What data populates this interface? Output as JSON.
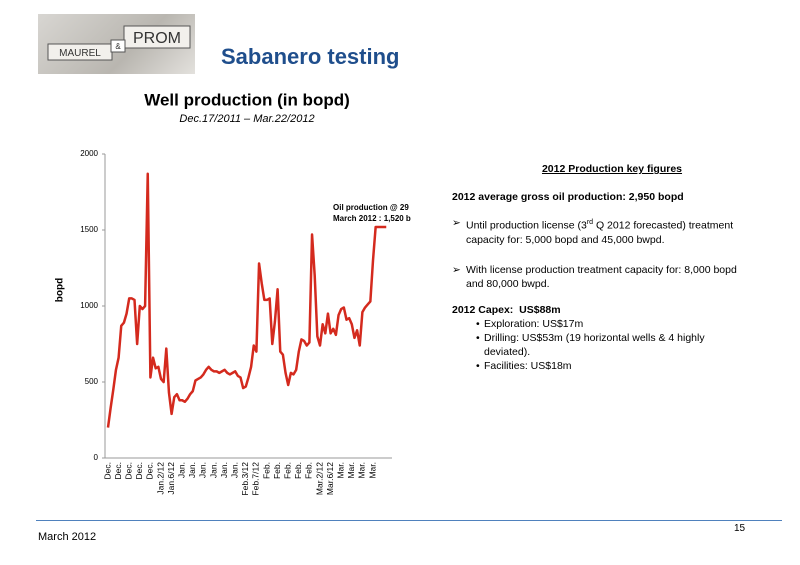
{
  "header": {
    "logo": [
      "MAUREL",
      "&",
      "PROM"
    ],
    "title": "Sabanero testing"
  },
  "chart_data": {
    "type": "line",
    "title": "Well production (in bopd)",
    "subtitle": "Dec.17/2011 – Mar.22/2012",
    "y_label": "bopd",
    "categories": [
      "Dec.",
      null,
      null,
      null,
      "Dec.",
      null,
      null,
      null,
      "Dec.",
      null,
      null,
      null,
      "Dec.",
      null,
      null,
      null,
      "Dec.",
      null,
      null,
      null,
      "Jan.2/12",
      null,
      null,
      null,
      "Jan.6/12",
      null,
      null,
      null,
      "Jan.",
      null,
      null,
      null,
      "Jan.",
      null,
      null,
      null,
      "Jan.",
      null,
      null,
      null,
      "Jan.",
      null,
      null,
      null,
      "Jan.",
      null,
      null,
      null,
      "Jan.",
      null,
      null,
      null,
      "Feb.3/12",
      null,
      null,
      null,
      "Feb.7/12",
      null,
      null,
      null,
      "Feb.",
      null,
      null,
      null,
      "Feb.",
      null,
      null,
      null,
      "Feb.",
      null,
      null,
      null,
      "Feb.",
      null,
      null,
      null,
      "Feb.",
      null,
      null,
      null,
      "Mar.2/12",
      null,
      null,
      null,
      "Mar.6/12",
      null,
      null,
      null,
      "Mar.",
      null,
      null,
      null,
      "Mar.",
      null,
      null,
      null,
      "Mar.",
      null,
      null,
      null,
      "Mar.",
      null,
      null,
      null,
      null,
      null
    ],
    "values": [
      200,
      330,
      450,
      580,
      660,
      870,
      890,
      950,
      1050,
      1050,
      1040,
      750,
      1000,
      980,
      1000,
      1870,
      530,
      660,
      590,
      600,
      520,
      500,
      720,
      430,
      290,
      400,
      420,
      380,
      380,
      370,
      390,
      420,
      440,
      510,
      520,
      530,
      550,
      580,
      600,
      580,
      570,
      570,
      560,
      570,
      580,
      560,
      550,
      560,
      570,
      540,
      530,
      460,
      470,
      530,
      600,
      740,
      700,
      1280,
      1150,
      1040,
      1040,
      1050,
      750,
      900,
      1110,
      700,
      680,
      560,
      480,
      560,
      550,
      580,
      700,
      780,
      770,
      740,
      760,
      1470,
      1200,
      800,
      740,
      880,
      820,
      950,
      820,
      850,
      810,
      940,
      980,
      990,
      910,
      920,
      880,
      790,
      840,
      740,
      960,
      990,
      1010,
      1030,
      1300,
      1520,
      1520,
      1520,
      1520,
      1520
    ],
    "color": "#d42a1e",
    "ylim": [
      0,
      2000
    ],
    "yticks": [
      0,
      500,
      1000,
      1500,
      2000
    ],
    "grid": false,
    "annotation": [
      "Oil production @ 29",
      "March 2012 : 1,520 b"
    ]
  },
  "key_figures": {
    "heading": "2012 Production key figures",
    "average": "2012 average gross oil production: 2,950 bopd",
    "bullets": [
      [
        "Until production license (3",
        "rd",
        " Q 2012 forecasted) treatment capacity for: 5,000 bopd and 45,000 bwpd."
      ],
      [
        "With license production treatment capacity for: 8,000 bopd and 80,000 bwpd."
      ]
    ],
    "capex": {
      "label": "2012 Capex:",
      "total": "US$88m",
      "items": [
        "Exploration: US$17m",
        "Drilling: US$53m (19 horizontal wells & 4 highly deviated).",
        "Facilities: US$18m"
      ]
    }
  },
  "footer": {
    "date": "March 2012",
    "page": "15"
  }
}
